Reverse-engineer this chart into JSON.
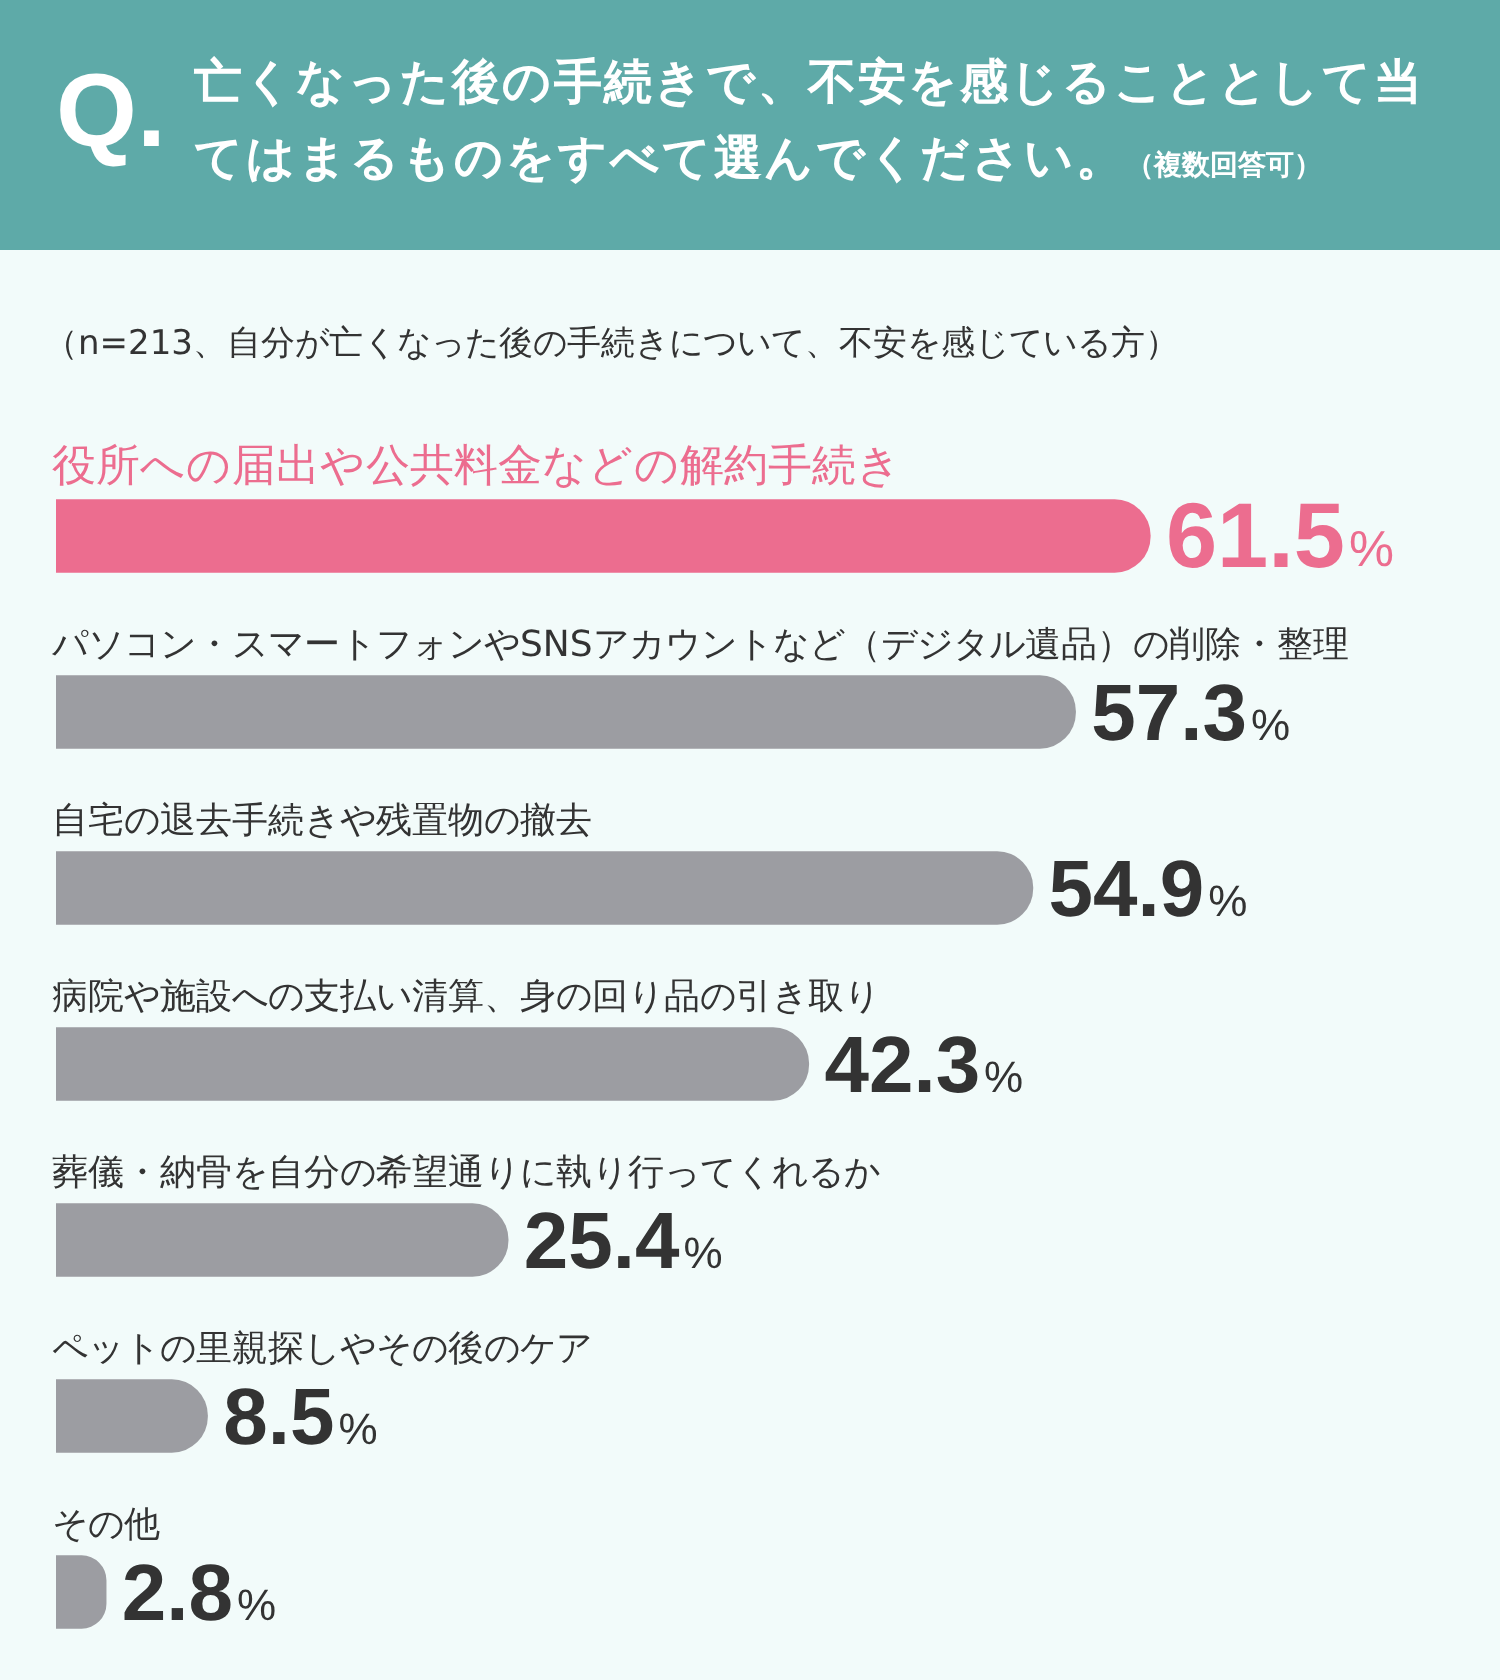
{
  "chart_data": {
    "type": "bar",
    "orientation": "horizontal",
    "title": "Q.亡くなった後の手続きで、不安を感じることとして当てはまるものをすべて選んでください。（複数回答可）",
    "subtitle": "（n=213、自分が亡くなった後の手続きについて、不安を感じている方）",
    "categories": [
      "役所への届出や公共料金などの解約手続き",
      "パソコン・スマートフォンやSNSアカウントなど（デジタル遺品）の削除・整理",
      "自宅の退去手続きや残置物の撤去",
      "病院や施設への支払い清算、身の回り品の引き取り",
      "葬儀・納骨を自分の希望通りに執り行ってくれるか",
      "ペットの里親探しやその後のケア",
      "その他"
    ],
    "values": [
      61.5,
      57.3,
      54.9,
      42.3,
      25.4,
      8.5,
      2.8
    ],
    "value_labels": [
      "61.5%",
      "57.3%",
      "54.9%",
      "42.3%",
      "25.4%",
      "8.5%",
      "2.8%"
    ],
    "colors": [
      "#ec6d8f",
      "#9c9da2",
      "#9c9da2",
      "#9c9da2",
      "#9c9da2",
      "#9c9da2",
      "#9c9da2"
    ],
    "legend": false
  }
}
